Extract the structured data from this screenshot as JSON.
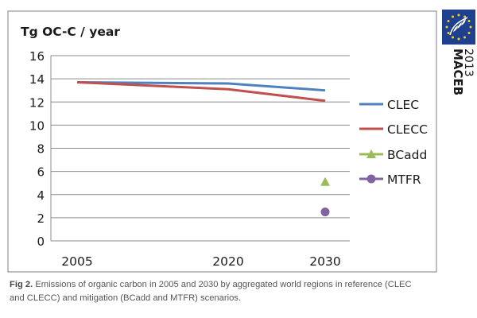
{
  "chart_data": {
    "type": "line",
    "ylabel": "Tg OC-C / year",
    "categories": [
      "2005",
      "2020",
      "2030"
    ],
    "ylim": [
      0,
      16
    ],
    "yticks": [
      "0",
      "2",
      "4",
      "6",
      "8",
      "10",
      "12",
      "14",
      "16"
    ],
    "grid": true,
    "legend_position": "right",
    "series": [
      {
        "name": "CLEC",
        "kind": "line",
        "marker": "none",
        "color": "#4f81bd",
        "values": [
          13.7,
          13.6,
          13.0
        ]
      },
      {
        "name": "CLECC",
        "kind": "line",
        "marker": "none",
        "color": "#c0504d",
        "values": [
          13.7,
          13.1,
          12.1
        ]
      },
      {
        "name": "BCadd",
        "kind": "point",
        "marker": "triangle",
        "color": "#9bbb59",
        "values": [
          null,
          null,
          5.1
        ]
      },
      {
        "name": "MTFR",
        "kind": "point",
        "marker": "circle",
        "color": "#8064a2",
        "values": [
          null,
          null,
          2.5
        ]
      }
    ]
  },
  "caption": {
    "label": "Fig 2.",
    "text": "Emissions of organic carbon in 2005 and 2030 by aggregated world regions in reference (CLEC and CLECC) and mitigation (BCadd and MTFR) scenarios."
  },
  "branding": {
    "name": "MACEB",
    "year": "2013",
    "flag_colors": {
      "field": "#1f3f8f",
      "stars": "#f3d21a"
    },
    "logo_icon": "eu-life-logo-icon"
  }
}
